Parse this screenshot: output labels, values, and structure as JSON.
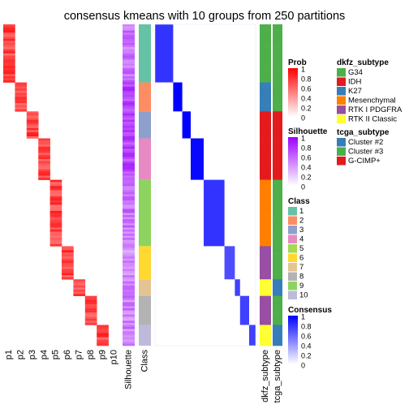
{
  "chart_data": {
    "type": "heatmap",
    "title": "consensus kmeans with 10 groups from 250 partitions",
    "prob_columns": [
      "p1",
      "p2",
      "p3",
      "p4",
      "p5",
      "p6",
      "p7",
      "p8",
      "p9",
      "p10"
    ],
    "side_columns": [
      "Silhouette",
      "Class"
    ],
    "annotation_columns": [
      "dkfz_subtype",
      "tcga_subtype"
    ],
    "groups": [
      {
        "class": 1,
        "rows": 28,
        "silhouette": 0.55,
        "dkfz": "G34",
        "tcga": "Cluster #3"
      },
      {
        "class": 2,
        "rows": 14,
        "silhouette": 0.75,
        "dkfz": "K27",
        "tcga": "Cluster #3"
      },
      {
        "class": 3,
        "rows": 13,
        "silhouette": 0.78,
        "dkfz": "IDH",
        "tcga": "G-CIMP+"
      },
      {
        "class": 4,
        "rows": 20,
        "silhouette": 0.72,
        "dkfz": "IDH",
        "tcga": "G-CIMP+"
      },
      {
        "class": 9,
        "rows": 32,
        "silhouette": 0.55,
        "dkfz": "Mesenchymal",
        "tcga": "Cluster #3"
      },
      {
        "class": 6,
        "rows": 16,
        "silhouette": 0.45,
        "dkfz": "RTK I PDGFRA",
        "tcga": "Cluster #3"
      },
      {
        "class": 7,
        "rows": 8,
        "silhouette": 0.5,
        "dkfz": "RTK II Classic",
        "tcga": "Cluster #2"
      },
      {
        "class": 8,
        "rows": 14,
        "silhouette": 0.5,
        "dkfz": "RTK I PDGFRA",
        "tcga": "Cluster #3"
      },
      {
        "class": 10,
        "rows": 10,
        "silhouette": 0.5,
        "dkfz": "RTK II Classic",
        "tcga": "Cluster #2"
      }
    ],
    "legends": {
      "prob": {
        "title": "Prob",
        "ticks": [
          "1",
          "0.8",
          "0.6",
          "0.4",
          "0.2",
          "0"
        ],
        "low": "#ffffff",
        "high": "#ff0000"
      },
      "silhouette": {
        "title": "Silhouette",
        "ticks": [
          "1",
          "0.8",
          "0.6",
          "0.4",
          "0.2",
          "0"
        ],
        "low": "#ffffff",
        "high": "#9e00ff"
      },
      "class": {
        "title": "Class",
        "items": [
          {
            "label": "1",
            "color": "#66C2A5"
          },
          {
            "label": "2",
            "color": "#FC8D62"
          },
          {
            "label": "3",
            "color": "#8DA0CB"
          },
          {
            "label": "4",
            "color": "#E78AC3"
          },
          {
            "label": "5",
            "color": "#A6D854"
          },
          {
            "label": "6",
            "color": "#FFD92F"
          },
          {
            "label": "7",
            "color": "#E5C494"
          },
          {
            "label": "8",
            "color": "#B3B3B3"
          },
          {
            "label": "9",
            "color": "#8DD35F"
          },
          {
            "label": "10",
            "color": "#BEBADA"
          }
        ]
      },
      "consensus": {
        "title": "Consensus",
        "ticks": [
          "1",
          "0.8",
          "0.6",
          "0.4",
          "0.2",
          "0"
        ],
        "low": "#ffffff",
        "high": "#0000ff"
      },
      "dkfz_subtype": {
        "title": "dkfz_subtype",
        "items": [
          {
            "label": "G34",
            "color": "#4DAF4A"
          },
          {
            "label": "IDH",
            "color": "#E41A1C"
          },
          {
            "label": "K27",
            "color": "#377EB8"
          },
          {
            "label": "Mesenchymal",
            "color": "#FF7F00"
          },
          {
            "label": "RTK I PDGFRA",
            "color": "#984EA3"
          },
          {
            "label": "RTK II Classic",
            "color": "#FFFF33"
          }
        ]
      },
      "tcga_subtype": {
        "title": "tcga_subtype",
        "items": [
          {
            "label": "Cluster #2",
            "color": "#377EB8"
          },
          {
            "label": "Cluster #3",
            "color": "#4DAF4A"
          },
          {
            "label": "G-CIMP+",
            "color": "#E41A1C"
          }
        ]
      }
    }
  }
}
